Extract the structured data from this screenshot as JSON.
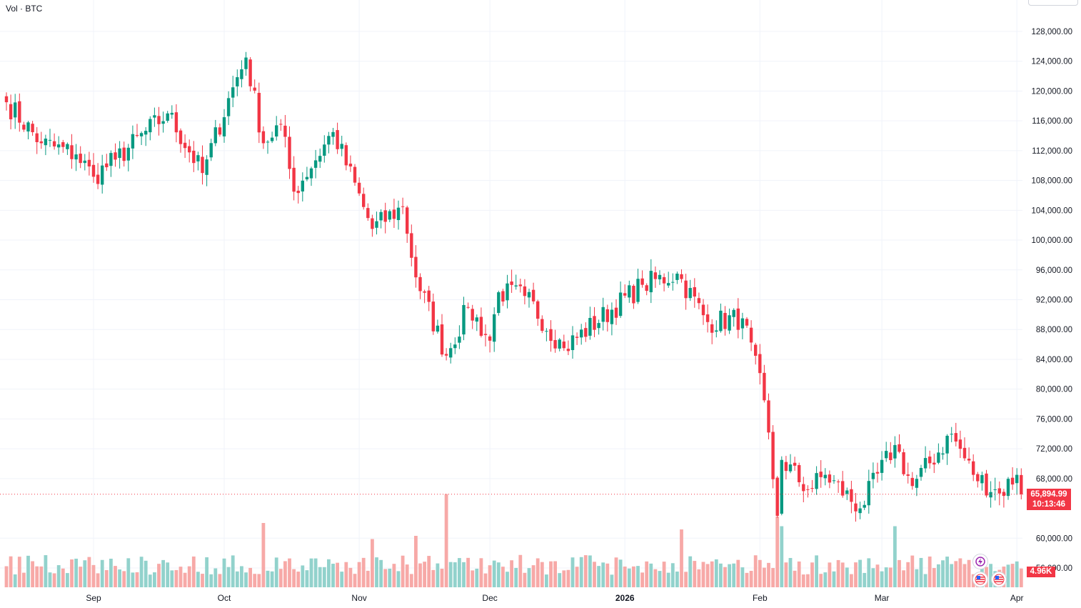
{
  "legend": {
    "volume_label": "Vol · BTC"
  },
  "price_axis": {
    "ticks": [
      "128,000.00",
      "124,000.00",
      "120,000.00",
      "116,000.00",
      "112,000.00",
      "108,000.00",
      "104,000.00",
      "100,000.00",
      "96,000.00",
      "92,000.00",
      "88,000.00",
      "84,000.00",
      "80,000.00",
      "76,000.00",
      "72,000.00",
      "68,000.00",
      "60,000.00",
      "56,000.00"
    ],
    "tick_values": [
      128000,
      124000,
      120000,
      116000,
      112000,
      108000,
      104000,
      100000,
      96000,
      92000,
      88000,
      84000,
      80000,
      76000,
      72000,
      68000,
      60000,
      56000
    ]
  },
  "current_price": {
    "value": "65,894.99",
    "countdown": "10:13:46",
    "price": 65894.99
  },
  "current_volume": {
    "value": "4.96K"
  },
  "time_axis": {
    "labels": [
      {
        "text": "Sep",
        "date": "2025-09-01",
        "bold": false
      },
      {
        "text": "Oct",
        "date": "2025-10-01",
        "bold": false
      },
      {
        "text": "Nov",
        "date": "2025-11-01",
        "bold": false
      },
      {
        "text": "Dec",
        "date": "2025-12-01",
        "bold": false
      },
      {
        "text": "2026",
        "date": "2026-01-01",
        "bold": true
      },
      {
        "text": "Feb",
        "date": "2026-02-01",
        "bold": false
      },
      {
        "text": "Mar",
        "date": "2026-03-01",
        "bold": false
      },
      {
        "text": "Apr",
        "date": "2026-04-01",
        "bold": false
      }
    ]
  },
  "colors": {
    "up": "#089981",
    "down": "#f23645",
    "vol_up": "#92d2cc",
    "vol_down": "#f7a9a7",
    "grid": "#f0f3fa"
  },
  "icons": [
    "lightning-event-icon",
    "us-flag-event-icon"
  ],
  "chart_data": {
    "type": "candlestick",
    "symbol": "BTC",
    "start_date": "2025-08-12",
    "interval": "1D",
    "yrange": [
      50000,
      131000
    ],
    "close_key_points": [
      {
        "date": "2025-08-12",
        "close": 118500
      },
      {
        "date": "2025-08-20",
        "close": 113000
      },
      {
        "date": "2025-08-28",
        "close": 111500
      },
      {
        "date": "2025-09-01",
        "close": 108500
      },
      {
        "date": "2025-09-06",
        "close": 110800
      },
      {
        "date": "2025-09-18",
        "close": 117000
      },
      {
        "date": "2025-09-26",
        "close": 109000
      },
      {
        "date": "2025-10-03",
        "close": 120500
      },
      {
        "date": "2025-10-06",
        "close": 124500
      },
      {
        "date": "2025-10-10",
        "close": 113000
      },
      {
        "date": "2025-10-14",
        "close": 115500
      },
      {
        "date": "2025-10-17",
        "close": 106500
      },
      {
        "date": "2025-10-26",
        "close": 114500
      },
      {
        "date": "2025-11-04",
        "close": 101500
      },
      {
        "date": "2025-11-11",
        "close": 104500
      },
      {
        "date": "2025-11-14",
        "close": 95000
      },
      {
        "date": "2025-11-21",
        "close": 84500
      },
      {
        "date": "2025-11-26",
        "close": 91000
      },
      {
        "date": "2025-12-01",
        "close": 86500
      },
      {
        "date": "2025-12-03",
        "close": 93000
      },
      {
        "date": "2025-12-09",
        "close": 92500
      },
      {
        "date": "2025-12-18",
        "close": 85500
      },
      {
        "date": "2026-01-05",
        "close": 94000
      },
      {
        "date": "2026-01-13",
        "close": 95500
      },
      {
        "date": "2026-01-20",
        "close": 89000
      },
      {
        "date": "2026-01-28",
        "close": 89500
      },
      {
        "date": "2026-02-02",
        "close": 78500
      },
      {
        "date": "2026-02-05",
        "close": 63000
      },
      {
        "date": "2026-02-06",
        "close": 70500
      },
      {
        "date": "2026-02-12",
        "close": 66500
      },
      {
        "date": "2026-02-16",
        "close": 68500
      },
      {
        "date": "2026-02-24",
        "close": 64000
      },
      {
        "date": "2026-03-04",
        "close": 72500
      },
      {
        "date": "2026-03-08",
        "close": 67000
      },
      {
        "date": "2026-03-17",
        "close": 74000
      },
      {
        "date": "2026-03-22",
        "close": 68500
      },
      {
        "date": "2026-03-28",
        "close": 66000
      },
      {
        "date": "2026-04-01",
        "close": 68500
      },
      {
        "date": "2026-04-02",
        "close": 65895
      }
    ],
    "volume_profile": {
      "typical": 0.35,
      "spikes": [
        {
          "date": "2025-10-10",
          "level": 1.0
        },
        {
          "date": "2025-11-04",
          "level": 0.75
        },
        {
          "date": "2025-11-14",
          "level": 0.8
        },
        {
          "date": "2025-11-21",
          "level": 1.45
        },
        {
          "date": "2026-01-14",
          "level": 0.9
        },
        {
          "date": "2026-02-05",
          "level": 1.1
        },
        {
          "date": "2026-02-06",
          "level": 0.95
        },
        {
          "date": "2026-03-04",
          "level": 0.95
        }
      ]
    }
  }
}
